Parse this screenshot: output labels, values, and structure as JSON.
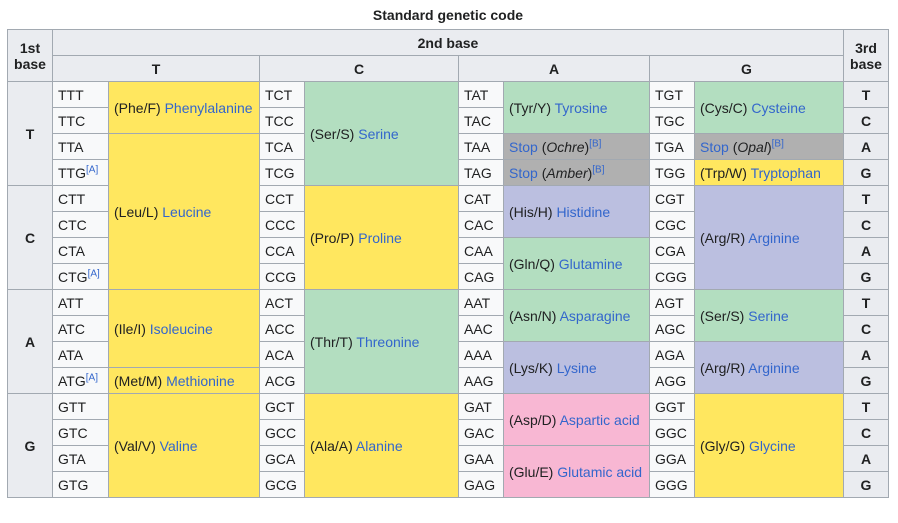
{
  "caption": "Standard genetic code",
  "header": {
    "first_base": "1st base",
    "second_base": "2nd base",
    "third_base": "3rd base",
    "second_bases": [
      "T",
      "C",
      "A",
      "G"
    ]
  },
  "row_bases": [
    "T",
    "C",
    "A",
    "G"
  ],
  "third_bases": [
    "T",
    "C",
    "A",
    "G",
    "T",
    "C",
    "A",
    "G",
    "T",
    "C",
    "A",
    "G",
    "T",
    "C",
    "A",
    "G"
  ],
  "codons": {
    "T": [
      "TTT",
      "TTC",
      "TTA",
      "TTG",
      "TCT",
      "TCC",
      "TCA",
      "TCG",
      "TAT",
      "TAC",
      "TAA",
      "TAG",
      "TGT",
      "TGC",
      "TGA",
      "TGG"
    ],
    "C": [
      "CTT",
      "CTC",
      "CTA",
      "CTG",
      "CCT",
      "CCC",
      "CCA",
      "CCG",
      "CAT",
      "CAC",
      "CAA",
      "CAG",
      "CGT",
      "CGC",
      "CGA",
      "CGG"
    ],
    "A": [
      "ATT",
      "ATC",
      "ATA",
      "ATG",
      "ACT",
      "ACC",
      "ACA",
      "ACG",
      "AAT",
      "AAC",
      "AAA",
      "AAG",
      "AGT",
      "AGC",
      "AGA",
      "AGG"
    ],
    "G": [
      "GTT",
      "GTC",
      "GTA",
      "GTG",
      "GCT",
      "GCC",
      "GCA",
      "GCG",
      "GAT",
      "GAC",
      "GAA",
      "GAG",
      "GGT",
      "GGC",
      "GGA",
      "GGG"
    ]
  },
  "footnote_marker": "[A]",
  "stop_footnote_marker": "[B]",
  "amino_acids": {
    "phe": {
      "code": "(Phe/F)",
      "name": "Phenylalanine"
    },
    "leu": {
      "code": "(Leu/L)",
      "name": "Leucine"
    },
    "ser": {
      "code": "(Ser/S)",
      "name": "Serine"
    },
    "tyr": {
      "code": "(Tyr/Y)",
      "name": "Tyrosine"
    },
    "cys": {
      "code": "(Cys/C)",
      "name": "Cysteine"
    },
    "trp": {
      "code": "(Trp/W)",
      "name": "Tryptophan"
    },
    "pro": {
      "code": "(Pro/P)",
      "name": "Proline"
    },
    "his": {
      "code": "(His/H)",
      "name": "Histidine"
    },
    "gln": {
      "code": "(Gln/Q)",
      "name": "Glutamine"
    },
    "arg": {
      "code": "(Arg/R)",
      "name": "Arginine"
    },
    "ile": {
      "code": "(Ile/I)",
      "name": "Isoleucine"
    },
    "met": {
      "code": "(Met/M)",
      "name": "Methionine"
    },
    "thr": {
      "code": "(Thr/T)",
      "name": "Threonine"
    },
    "asn": {
      "code": "(Asn/N)",
      "name": "Asparagine"
    },
    "lys": {
      "code": "(Lys/K)",
      "name": "Lysine"
    },
    "ser2": {
      "code": "(Ser/S)",
      "name": "Serine"
    },
    "arg2": {
      "code": "(Arg/R)",
      "name": "Arginine"
    },
    "val": {
      "code": "(Val/V)",
      "name": "Valine"
    },
    "ala": {
      "code": "(Ala/A)",
      "name": "Alanine"
    },
    "asp": {
      "code": "(Asp/D)",
      "name": "Aspartic acid"
    },
    "glu": {
      "code": "(Glu/E)",
      "name": "Glutamic acid"
    },
    "gly": {
      "code": "(Gly/G)",
      "name": "Glycine"
    }
  },
  "stops": {
    "ochre": {
      "word": "Stop",
      "name": "Ochre"
    },
    "amber": {
      "word": "Stop",
      "name": "Amber"
    },
    "opal": {
      "word": "Stop",
      "name": "Opal"
    }
  },
  "colors": {
    "nonpolar": "#ffe75f",
    "polar": "#b3dec0",
    "basic": "#bbbfe0",
    "acidic": "#f8b7d3",
    "stop": "#b0b0b0",
    "link": "#3366cc",
    "header": "#eaecf0"
  }
}
